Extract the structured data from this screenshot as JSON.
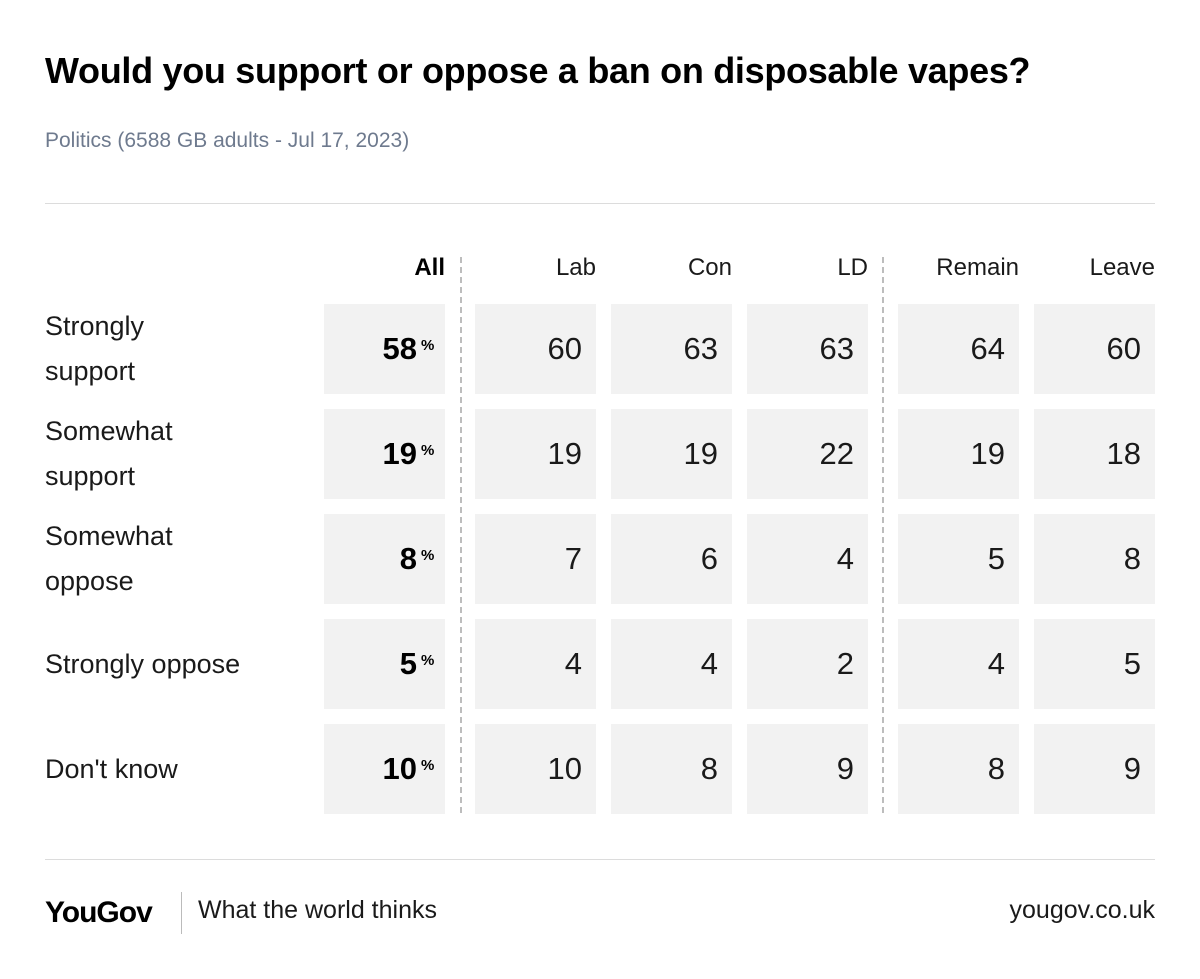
{
  "header": {
    "title": "Would you support or oppose a ban on disposable vapes?",
    "subtitle": "Politics (6588 GB adults - Jul 17, 2023)"
  },
  "chart_data": {
    "type": "table",
    "columns": [
      "All",
      "Lab",
      "Con",
      "LD",
      "Remain",
      "Leave"
    ],
    "percent_symbol": "%",
    "rows": [
      {
        "label_lines": [
          "Strongly",
          "support"
        ],
        "label": "Strongly support",
        "all": 58,
        "values": [
          60,
          63,
          63,
          64,
          60
        ]
      },
      {
        "label_lines": [
          "Somewhat",
          "support"
        ],
        "label": "Somewhat support",
        "all": 19,
        "values": [
          19,
          19,
          22,
          19,
          18
        ]
      },
      {
        "label_lines": [
          "Somewhat",
          "oppose"
        ],
        "label": "Somewhat oppose",
        "all": 8,
        "values": [
          7,
          6,
          4,
          5,
          8
        ]
      },
      {
        "label_lines": [
          "Strongly oppose"
        ],
        "label": "Strongly oppose",
        "all": 5,
        "values": [
          4,
          4,
          2,
          4,
          5
        ]
      },
      {
        "label_lines": [
          "Don't know"
        ],
        "label": "Don't know",
        "all": 10,
        "values": [
          10,
          8,
          9,
          8,
          9
        ]
      }
    ]
  },
  "footer": {
    "logo": "YouGov",
    "tagline": "What the world thinks",
    "site": "yougov.co.uk"
  },
  "colors": {
    "cell_background": "#f2f2f2",
    "subtitle": "#6e7a8e",
    "divider": "#bdbdbd"
  }
}
